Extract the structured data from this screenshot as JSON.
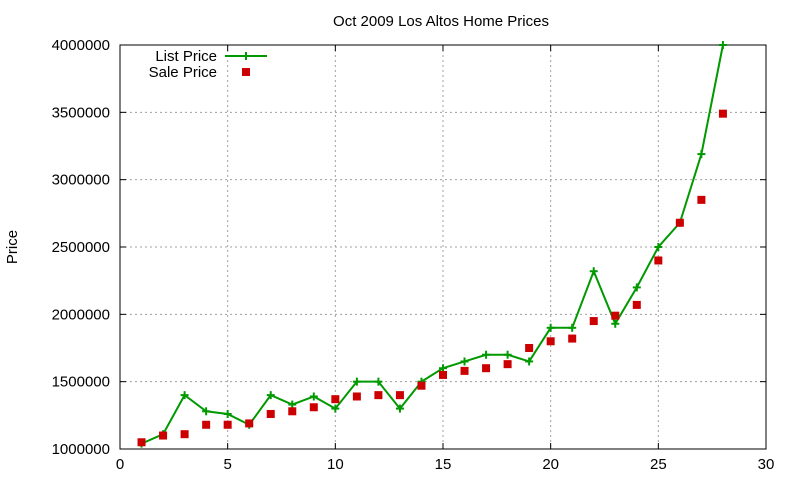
{
  "chart_data": {
    "type": "line",
    "title": "Oct 2009 Los Altos Home Prices",
    "xlabel": "",
    "ylabel": "Price",
    "xlim": [
      0,
      30
    ],
    "ylim": [
      1000000,
      4000000
    ],
    "x_ticks": [
      "0",
      "5",
      "10",
      "15",
      "20",
      "25",
      "30"
    ],
    "y_ticks": [
      "1000000",
      "1500000",
      "2000000",
      "2500000",
      "3000000",
      "3500000",
      "4000000"
    ],
    "grid": true,
    "legend_position": "top-left",
    "series": [
      {
        "name": "List Price",
        "style": "line+cross",
        "color": "#009900",
        "x": [
          1,
          2,
          3,
          4,
          5,
          6,
          7,
          8,
          9,
          10,
          11,
          12,
          13,
          14,
          15,
          16,
          17,
          18,
          19,
          20,
          21,
          22,
          23,
          24,
          25,
          26,
          27,
          28
        ],
        "values": [
          1040000,
          1110000,
          1400000,
          1280000,
          1260000,
          1180000,
          1400000,
          1330000,
          1390000,
          1300000,
          1500000,
          1500000,
          1300000,
          1500000,
          1600000,
          1650000,
          1700000,
          1700000,
          1650000,
          1900000,
          1900000,
          2320000,
          1930000,
          2200000,
          2500000,
          2680000,
          3190000,
          4000000
        ]
      },
      {
        "name": "Sale Price",
        "style": "square",
        "color": "#cc0000",
        "x": [
          1,
          2,
          3,
          4,
          5,
          6,
          7,
          8,
          9,
          10,
          11,
          12,
          13,
          14,
          15,
          16,
          17,
          18,
          19,
          20,
          21,
          22,
          23,
          24,
          25,
          26,
          27,
          28
        ],
        "values": [
          1050000,
          1100000,
          1110000,
          1180000,
          1180000,
          1190000,
          1260000,
          1280000,
          1310000,
          1370000,
          1390000,
          1400000,
          1400000,
          1470000,
          1550000,
          1580000,
          1600000,
          1630000,
          1750000,
          1800000,
          1820000,
          1950000,
          1990000,
          2070000,
          2400000,
          2680000,
          2850000,
          3490000
        ]
      }
    ]
  }
}
